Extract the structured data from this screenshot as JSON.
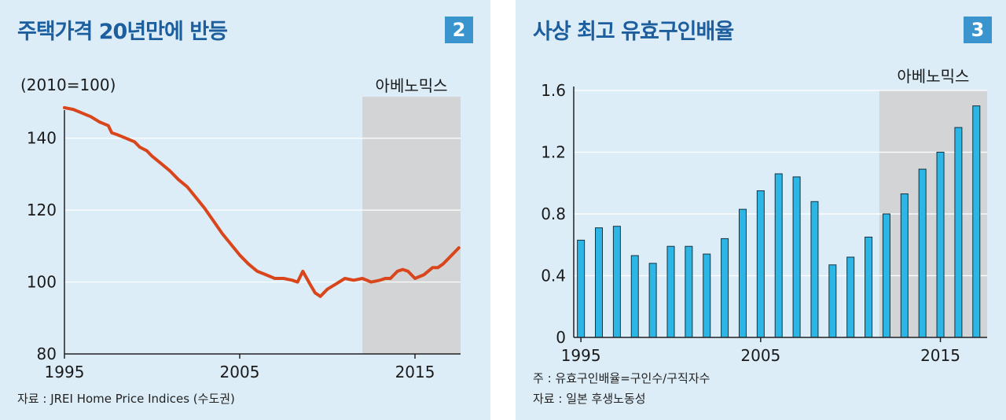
{
  "chart_data": [
    {
      "type": "line",
      "title": "주택가격 20년만에 반등",
      "badge": "2",
      "unit_label": "(2010=100)",
      "shade_label": "아베노믹스",
      "shade_range": [
        2012.0,
        2017.6
      ],
      "xlim": [
        1995,
        2017.6
      ],
      "ylim": [
        80,
        150
      ],
      "x_ticks": [
        "1995",
        "2005",
        "2015"
      ],
      "y_ticks": [
        "80",
        "100",
        "120",
        "140"
      ],
      "grid": true,
      "series_color": "#d9461b",
      "x": [
        1995.0,
        1995.5,
        1996.0,
        1996.5,
        1997.0,
        1997.5,
        1997.7,
        1998.0,
        1998.5,
        1999.0,
        1999.3,
        1999.7,
        2000.0,
        2000.5,
        2001.0,
        2001.5,
        2002.0,
        2002.5,
        2003.0,
        2003.5,
        2004.0,
        2004.5,
        2005.0,
        2005.5,
        2006.0,
        2006.5,
        2007.0,
        2007.5,
        2008.0,
        2008.3,
        2008.6,
        2009.0,
        2009.3,
        2009.6,
        2010.0,
        2010.5,
        2011.0,
        2011.5,
        2012.0,
        2012.5,
        2013.0,
        2013.3,
        2013.6,
        2014.0,
        2014.3,
        2014.6,
        2015.0,
        2015.5,
        2016.0,
        2016.3,
        2016.6,
        2017.0,
        2017.5
      ],
      "values": [
        148.5,
        148,
        147,
        146,
        144.5,
        143.5,
        141.5,
        141,
        140,
        139,
        137.5,
        136.5,
        135,
        133,
        131,
        128.5,
        126.5,
        123.5,
        120.5,
        117,
        113.5,
        110.5,
        107.5,
        105,
        103,
        102,
        101,
        101,
        100.5,
        100,
        103,
        99.5,
        97,
        96,
        98,
        99.5,
        101,
        100.5,
        101,
        100,
        100.5,
        101,
        101,
        103,
        103.5,
        103,
        101,
        102,
        104,
        104,
        105,
        107,
        109.5
      ]
    },
    {
      "type": "bar",
      "title": "사상 최고 유효구인배율",
      "badge": "3",
      "shade_label": "아베노믹스",
      "shade_range": [
        2011.6,
        2017.6
      ],
      "xlim": [
        1994.6,
        2017.6
      ],
      "ylim": [
        0,
        1.6
      ],
      "x_ticks": [
        "1995",
        "2005",
        "2015"
      ],
      "y_ticks": [
        "0",
        "0.4",
        "0.8",
        "1.2",
        "1.6"
      ],
      "grid": true,
      "series_color": "#2bb6e6",
      "categories": [
        "1995",
        "1996",
        "1997",
        "1998",
        "1999",
        "2000",
        "2001",
        "2002",
        "2003",
        "2004",
        "2005",
        "2006",
        "2007",
        "2008",
        "2009",
        "2010",
        "2011",
        "2012",
        "2013",
        "2014",
        "2015",
        "2016",
        "2017"
      ],
      "values": [
        0.63,
        0.71,
        0.72,
        0.53,
        0.48,
        0.59,
        0.59,
        0.54,
        0.64,
        0.83,
        0.95,
        1.06,
        1.04,
        0.88,
        0.47,
        0.52,
        0.65,
        0.8,
        0.93,
        1.09,
        1.2,
        1.36,
        1.5
      ]
    }
  ],
  "notes": {
    "left_source": "자료 : JREI Home Price Indices (수도권)",
    "right_note": "주 : 유효구인배율=구인수/구직자수",
    "right_source": "자료 : 일본 후생노동성"
  }
}
